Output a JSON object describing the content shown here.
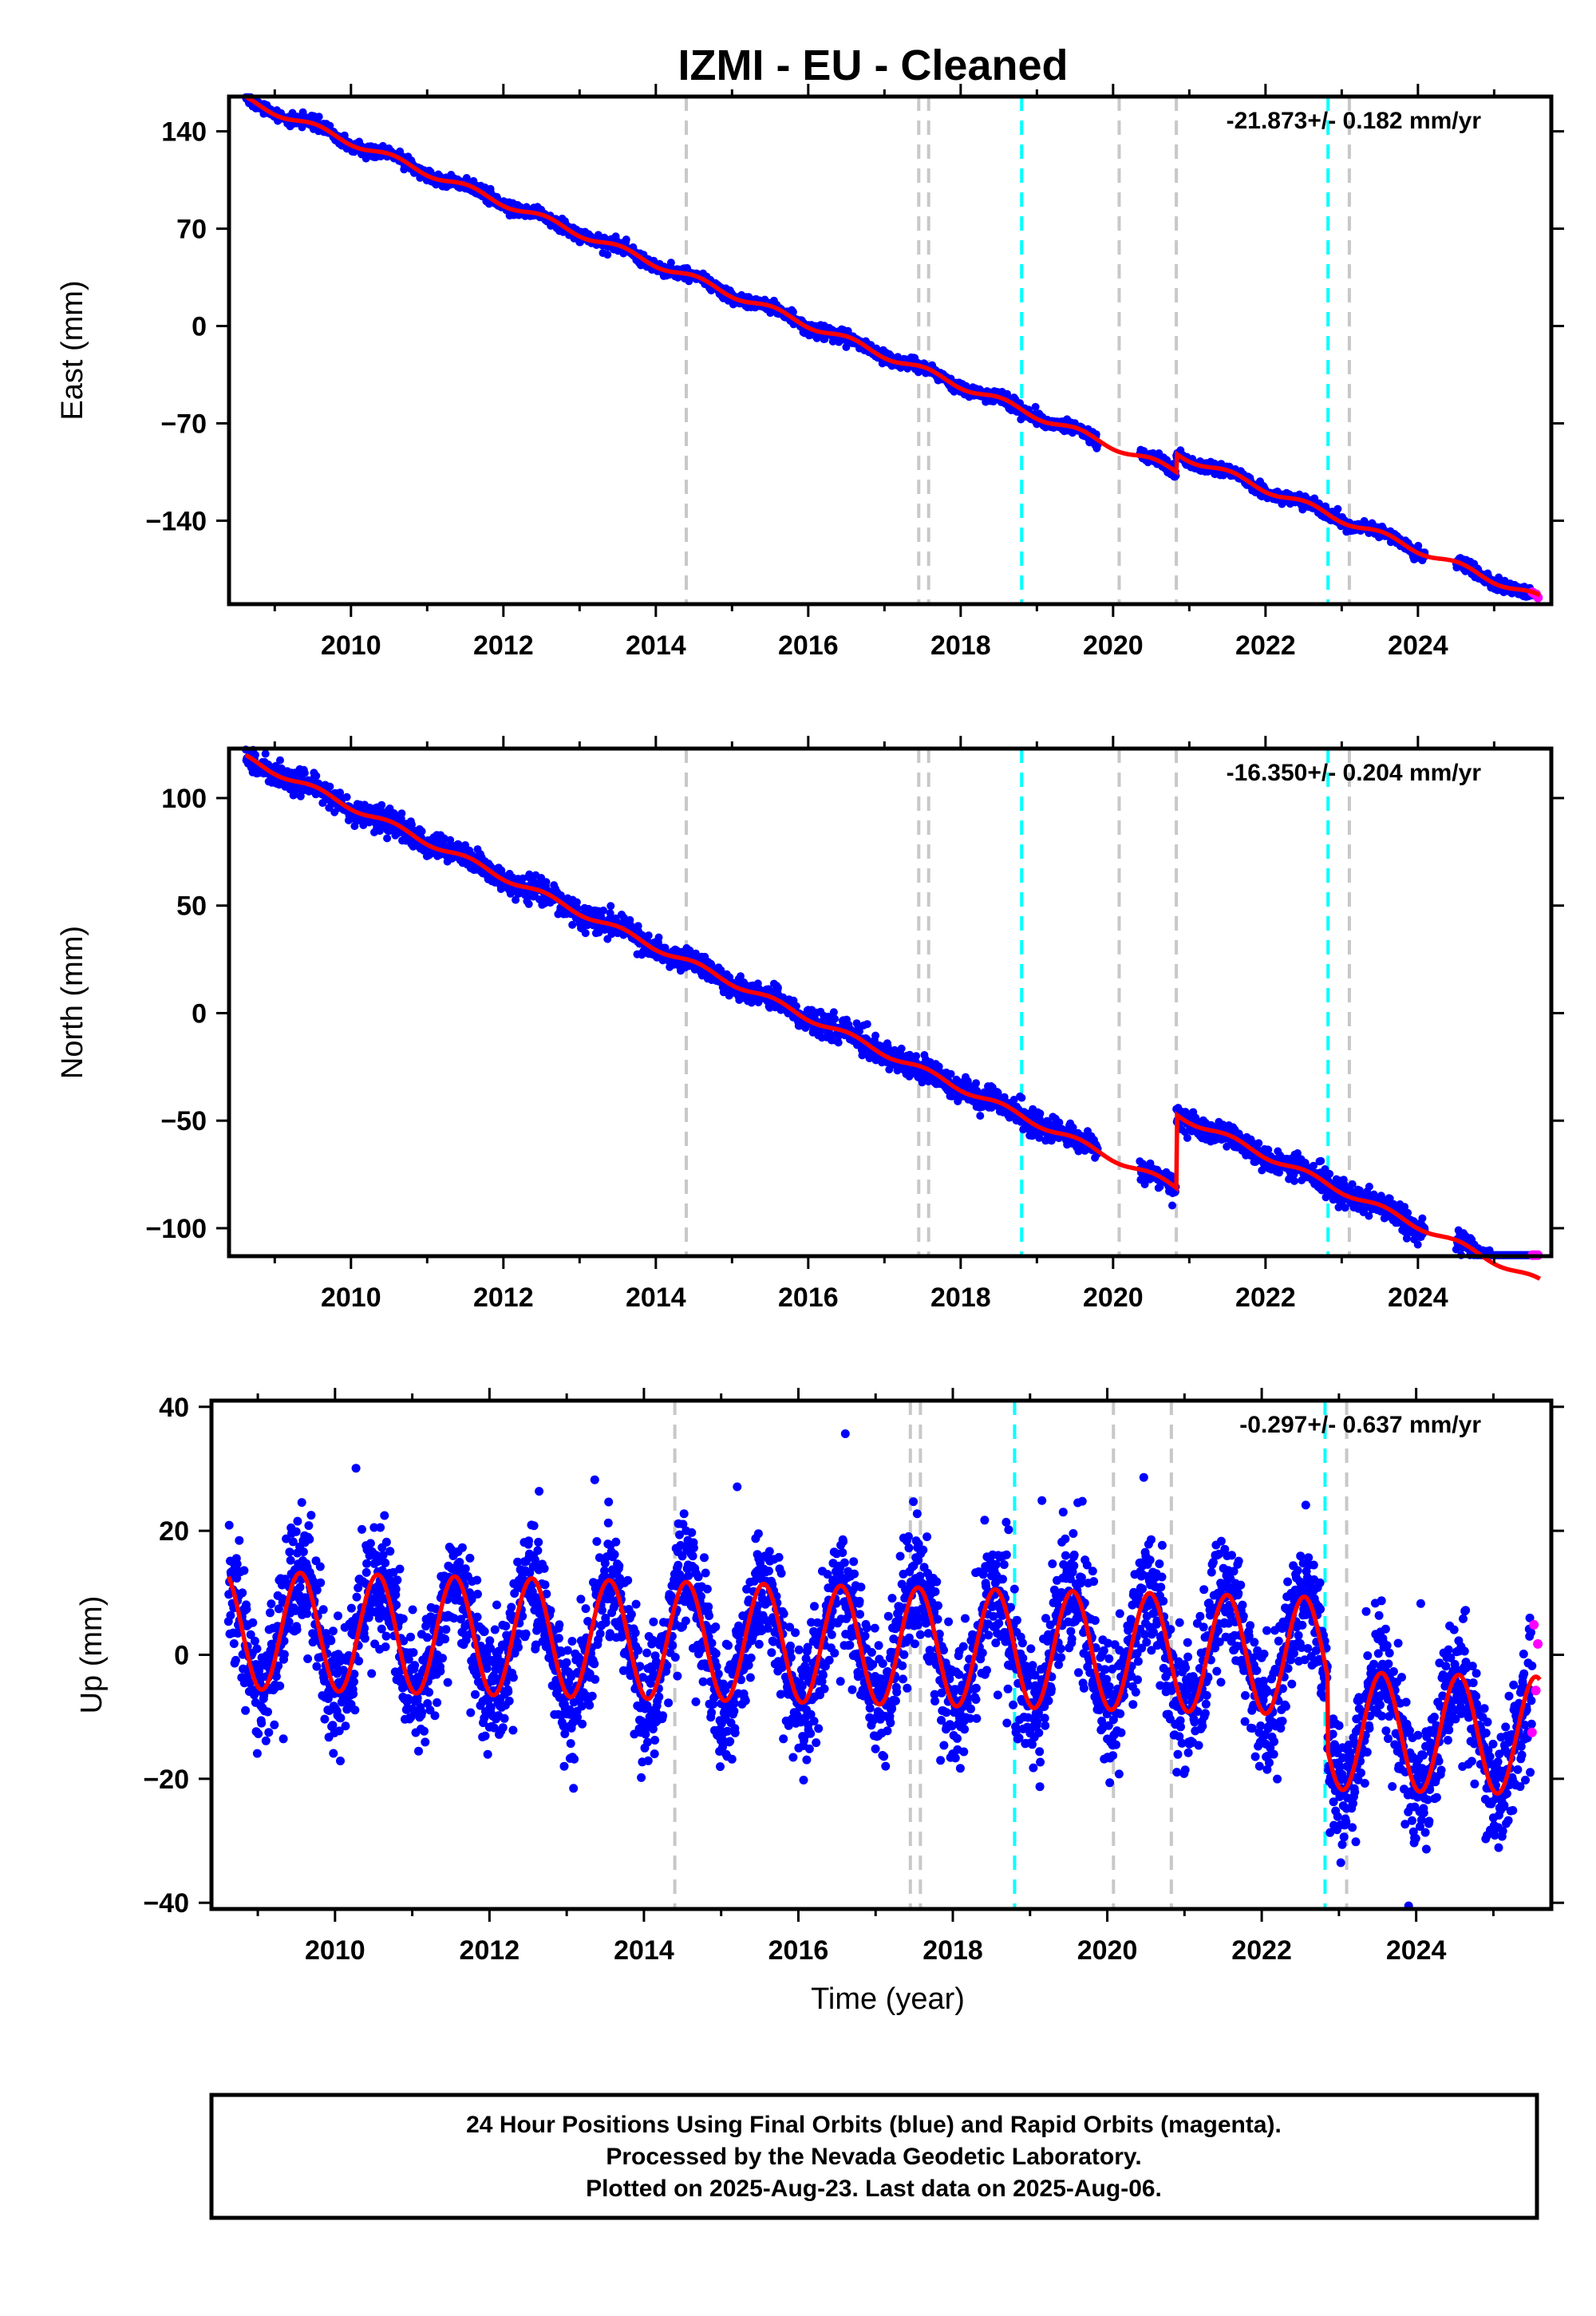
{
  "title": "IZMI  - EU - Cleaned",
  "colors": {
    "final_orbits": "#0000ff",
    "rapid_orbits": "#ff00ff",
    "model_fit": "#ff0000",
    "event_gray": "#c8c8c8",
    "event_cyan": "#00ffff",
    "frame": "#000000"
  },
  "chart_data": [
    {
      "type": "scatter",
      "component": "east",
      "ylabel": "East (mm)",
      "xlabel": "",
      "rate_label": "-21.873+/- 0.182 mm/yr",
      "xlim": [
        2008.4,
        2025.75
      ],
      "ylim": [
        -200,
        165
      ],
      "xticks": [
        2010,
        2012,
        2014,
        2016,
        2018,
        2020,
        2022,
        2024
      ],
      "xtick_labels": [
        "2010",
        "2012",
        "2014",
        "2016",
        "2018",
        "2020",
        "2022",
        "2024"
      ],
      "yticks": [
        -140,
        -70,
        0,
        70,
        140
      ],
      "ytick_labels": [
        "−140",
        "−70",
        "0",
        "70",
        "140"
      ],
      "model": {
        "x0": 2008.6,
        "y0": 163,
        "rate": -21.873,
        "seasonal_amp": 2.5,
        "offsets": [
          {
            "x": 2020.83,
            "dy": 13
          }
        ],
        "gaps": [
          [
            2019.8,
            2020.35
          ],
          [
            2024.1,
            2024.5
          ]
        ],
        "scatter_sd": 2.2
      },
      "final_series": {
        "name": "Final Orbits",
        "start": 2008.62,
        "end": 2025.5
      },
      "rapid_series": {
        "name": "Rapid Orbits",
        "start": 2025.5,
        "end": 2025.6
      }
    },
    {
      "type": "scatter",
      "component": "north",
      "ylabel": "North (mm)",
      "xlabel": "",
      "rate_label": "-16.350+/- 0.204 mm/yr",
      "xlim": [
        2008.4,
        2025.75
      ],
      "ylim": [
        -113,
        123
      ],
      "xticks": [
        2010,
        2012,
        2014,
        2016,
        2018,
        2020,
        2022,
        2024
      ],
      "xtick_labels": [
        "2010",
        "2012",
        "2014",
        "2016",
        "2018",
        "2020",
        "2022",
        "2024"
      ],
      "yticks": [
        -100,
        -50,
        0,
        50,
        100
      ],
      "ytick_labels": [
        "−100",
        "−50",
        "0",
        "50",
        "100"
      ],
      "model": {
        "x0": 2008.6,
        "y0": 119,
        "rate": -16.35,
        "seasonal_amp": 1.5,
        "offsets": [
          {
            "x": 2020.83,
            "dy": 34
          }
        ],
        "gaps": [
          [
            2019.8,
            2020.35
          ],
          [
            2024.1,
            2024.5
          ]
        ],
        "scatter_sd": 2.8
      },
      "final_series": {
        "name": "Final Orbits",
        "start": 2008.62,
        "end": 2025.5
      },
      "rapid_series": {
        "name": "Rapid Orbits",
        "start": 2025.5,
        "end": 2025.6
      }
    },
    {
      "type": "scatter",
      "component": "up",
      "ylabel": "Up (mm)",
      "xlabel": "Time (year)",
      "rate_label": "-0.297+/- 0.637 mm/yr",
      "xlim": [
        2008.4,
        2025.75
      ],
      "ylim": [
        -41,
        41
      ],
      "xticks": [
        2010,
        2012,
        2014,
        2016,
        2018,
        2020,
        2022,
        2024
      ],
      "xtick_labels": [
        "2010",
        "2012",
        "2014",
        "2016",
        "2018",
        "2020",
        "2022",
        "2024"
      ],
      "yticks": [
        -40,
        -20,
        0,
        20,
        40
      ],
      "ytick_labels": [
        "−40",
        "−20",
        "0",
        "20",
        "40"
      ],
      "model": {
        "x0": 2008.6,
        "y0": 4,
        "rate": -0.297,
        "seasonal_amp": 9.5,
        "offsets": [
          {
            "x": 2022.85,
            "dy": -12
          }
        ],
        "gaps": [],
        "scatter_sd": 5.0
      },
      "final_series": {
        "name": "Final Orbits",
        "start": 2008.62,
        "end": 2025.5
      },
      "rapid_series": {
        "name": "Rapid Orbits",
        "start": 2025.5,
        "end": 2025.6
      }
    }
  ],
  "events": [
    {
      "x": 2014.4,
      "kind": "gray"
    },
    {
      "x": 2017.45,
      "kind": "gray"
    },
    {
      "x": 2017.58,
      "kind": "gray"
    },
    {
      "x": 2018.8,
      "kind": "cyan"
    },
    {
      "x": 2020.08,
      "kind": "gray"
    },
    {
      "x": 2020.83,
      "kind": "gray"
    },
    {
      "x": 2022.82,
      "kind": "cyan"
    },
    {
      "x": 2023.1,
      "kind": "gray"
    }
  ],
  "footer": {
    "line1": "24 Hour Positions Using Final Orbits (blue) and Rapid Orbits (magenta).",
    "line2": "Processed by the Nevada Geodetic Laboratory.",
    "line3": "Plotted on 2025-Aug-23. Last data on 2025-Aug-06."
  }
}
